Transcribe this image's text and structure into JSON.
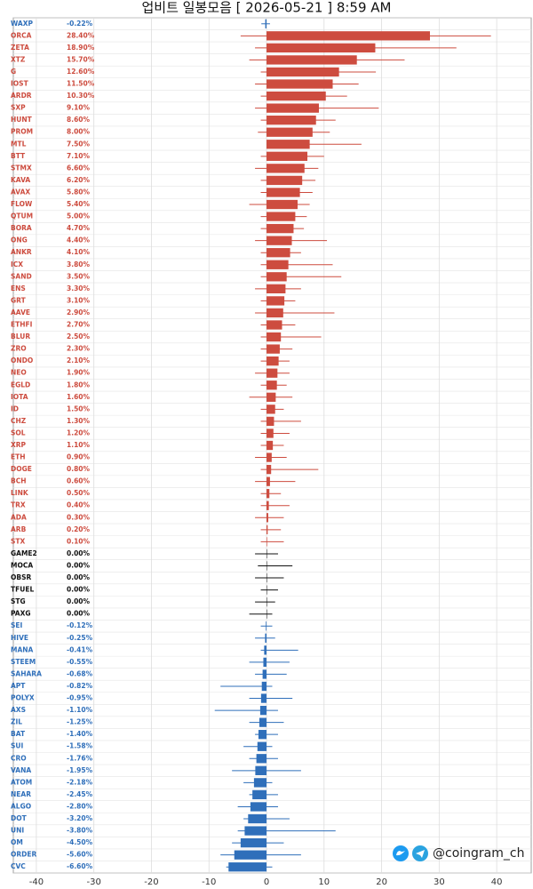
{
  "chart_data": {
    "type": "range-bar",
    "title": "업비트 일봉모음 [ 2026-05-21 ]  8:59 AM",
    "categories": [
      "WAXP",
      "ORCA",
      "ZETA",
      "XTZ",
      "G",
      "IOST",
      "ARDR",
      "SXP",
      "HUNT",
      "PROM",
      "MTL",
      "BTT",
      "STMX",
      "KAVA",
      "AVAX",
      "FLOW",
      "QTUM",
      "BORA",
      "ONG",
      "ANKR",
      "ICX",
      "SAND",
      "ENS",
      "GRT",
      "AAVE",
      "ETHFI",
      "BLUR",
      "ZRO",
      "ONDO",
      "NEO",
      "EGLD",
      "IOTA",
      "ID",
      "CHZ",
      "SOL",
      "XRP",
      "ETH",
      "DOGE",
      "BCH",
      "LINK",
      "TRX",
      "ADA",
      "ARB",
      "STX",
      "GAME2",
      "MOCA",
      "OBSR",
      "TFUEL",
      "STG",
      "PAXG",
      "SEI",
      "HIVE",
      "MANA",
      "STEEM",
      "SAHARA",
      "APT",
      "POLYX",
      "AXS",
      "ZIL",
      "BAT",
      "SUI",
      "CRO",
      "VANA",
      "ATOM",
      "NEAR",
      "ALGO",
      "DOT",
      "UNI",
      "OM",
      "ORDER",
      "CVC"
    ],
    "values": [
      -0.22,
      28.4,
      18.9,
      15.7,
      12.6,
      11.5,
      10.3,
      9.1,
      8.6,
      8.0,
      7.5,
      7.1,
      6.6,
      6.2,
      5.8,
      5.4,
      5.0,
      4.7,
      4.4,
      4.1,
      3.8,
      3.5,
      3.3,
      3.1,
      2.9,
      2.7,
      2.5,
      2.3,
      2.1,
      1.9,
      1.8,
      1.6,
      1.5,
      1.3,
      1.2,
      1.1,
      0.9,
      0.8,
      0.6,
      0.5,
      0.4,
      0.3,
      0.2,
      0.1,
      0,
      0,
      0,
      0,
      0,
      0,
      -0.12,
      -0.25,
      -0.41,
      -0.55,
      -0.68,
      -0.82,
      -0.95,
      -1.1,
      -1.25,
      -1.4,
      -1.58,
      -1.76,
      -1.95,
      -2.18,
      -2.45,
      -2.8,
      -3.2,
      -3.8,
      -4.5,
      -5.6,
      -6.6
    ],
    "value_labels": [
      "-0.22%",
      "28.40%",
      "18.90%",
      "15.70%",
      "12.60%",
      "11.50%",
      "10.30%",
      "9.10%",
      "8.60%",
      "8.00%",
      "7.50%",
      "7.10%",
      "6.60%",
      "6.20%",
      "5.80%",
      "5.40%",
      "5.00%",
      "4.70%",
      "4.40%",
      "4.10%",
      "3.80%",
      "3.50%",
      "3.30%",
      "3.10%",
      "2.90%",
      "2.70%",
      "2.50%",
      "2.30%",
      "2.10%",
      "1.90%",
      "1.80%",
      "1.60%",
      "1.50%",
      "1.30%",
      "1.20%",
      "1.10%",
      "0.90%",
      "0.80%",
      "0.60%",
      "0.50%",
      "0.40%",
      "0.30%",
      "0.20%",
      "0.10%",
      "0.00%",
      "0.00%",
      "0.00%",
      "0.00%",
      "0.00%",
      "0.00%",
      "-0.12%",
      "-0.25%",
      "-0.41%",
      "-0.55%",
      "-0.68%",
      "-0.82%",
      "-0.95%",
      "-1.10%",
      "-1.25%",
      "-1.40%",
      "-1.58%",
      "-1.76%",
      "-1.95%",
      "-2.18%",
      "-2.45%",
      "-2.80%",
      "-3.20%",
      "-3.80%",
      "-4.50%",
      "-5.60%",
      "-6.60%"
    ],
    "lows": [
      -0.9,
      -4.5,
      -2,
      -3,
      -1,
      -2,
      -1,
      -2,
      -1,
      -1.5,
      0,
      -1,
      -2,
      -1,
      -1,
      -3,
      -1,
      -1,
      -2,
      -1,
      -1,
      -1,
      -2,
      -1,
      -2,
      -1,
      -1,
      -1,
      -1,
      -2,
      -1,
      -3,
      -1,
      -1,
      -1,
      -1,
      -2,
      -1,
      -2,
      -1,
      -1,
      -2,
      -1,
      -1,
      -2,
      -1.5,
      -2,
      -1,
      -2,
      -3,
      -1,
      -2,
      -1,
      -3,
      -2,
      -8,
      -3,
      -9,
      -3,
      -2,
      -4,
      -3,
      -6,
      -4,
      -3,
      -5,
      -4,
      -5,
      -6,
      -8,
      -7
    ],
    "highs": [
      0.6,
      39,
      33,
      24,
      19,
      16,
      14,
      19.5,
      12,
      11,
      16.5,
      10,
      9,
      8.5,
      8,
      7.5,
      7,
      6.5,
      10.5,
      6,
      11.5,
      13,
      6,
      5,
      11.8,
      5,
      9.5,
      4.5,
      4,
      4,
      3.5,
      4.5,
      3,
      6,
      4,
      3,
      3.5,
      9,
      5,
      2.5,
      4,
      3,
      2.5,
      3,
      2,
      4.5,
      3,
      2,
      1.5,
      1,
      1,
      1.5,
      5.5,
      4,
      3.5,
      1,
      4.5,
      2,
      3,
      2,
      1,
      2,
      6,
      1,
      2,
      2,
      4,
      12,
      3,
      6,
      1
    ],
    "up_color": "#cd4c3f",
    "flat_color": "#111111",
    "down_color": "#2f6fba",
    "xlim": [
      -44,
      46
    ],
    "xticks": [
      -40,
      -30,
      -20,
      -10,
      0,
      10,
      20,
      30,
      40
    ],
    "grid": true,
    "watermark": "@coingram_ch"
  }
}
